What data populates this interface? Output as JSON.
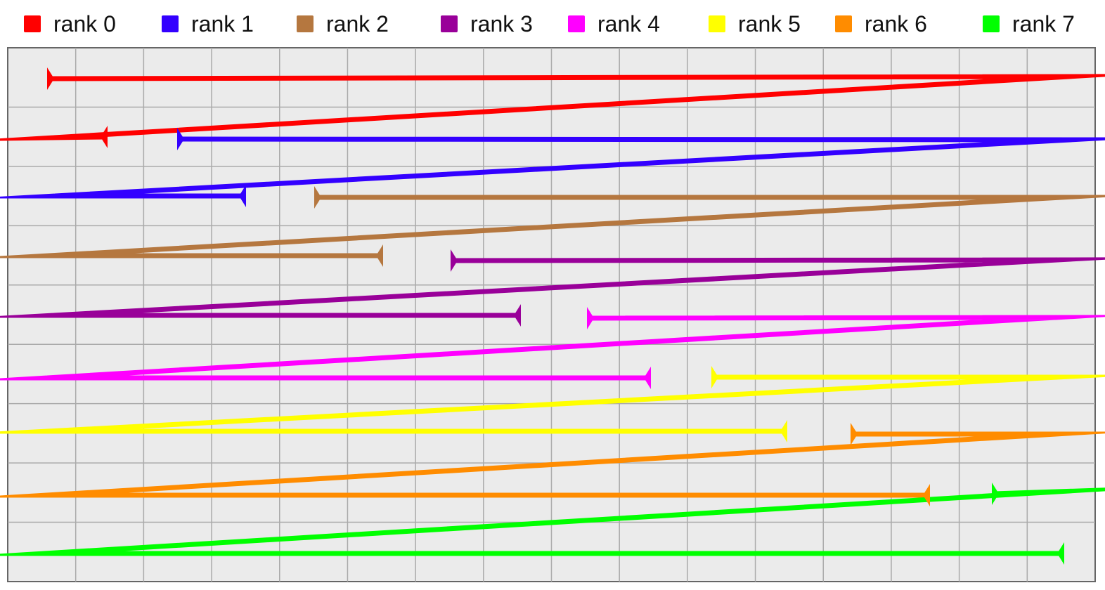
{
  "legend": [
    {
      "label": "rank 0",
      "color": "#ff0000"
    },
    {
      "label": "rank 1",
      "color": "#3300ff"
    },
    {
      "label": "rank 2",
      "color": "#b5773f"
    },
    {
      "label": "rank 3",
      "color": "#990099"
    },
    {
      "label": "rank 4",
      "color": "#ff00ff"
    },
    {
      "label": "rank 5",
      "color": "#ffff00"
    },
    {
      "label": "rank 6",
      "color": "#ff8c00"
    },
    {
      "label": "rank 7",
      "color": "#00ff00"
    }
  ],
  "panel": {
    "background": "#ebebeb",
    "border_color": "#666666",
    "grid_color": "#aaaaaa"
  }
}
